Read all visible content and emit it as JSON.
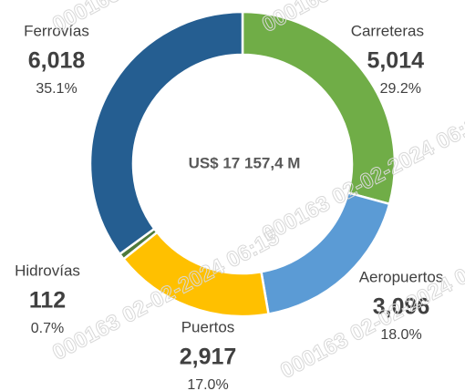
{
  "chart_data": {
    "type": "donut",
    "center_label": "US$ 17 157,4 M",
    "categories": [
      "Carreteras",
      "Aeropuertos",
      "Puertos",
      "Hidrovías",
      "Ferrovías"
    ],
    "values": [
      5014,
      3096,
      2917,
      112,
      6018
    ],
    "value_labels": [
      "5,014",
      "3,096",
      "2,917",
      "112",
      "6,018"
    ],
    "percents": [
      29.2,
      18.0,
      17.0,
      0.7,
      35.1
    ],
    "percent_labels": [
      "29.2%",
      "18.0%",
      "17.0%",
      "0.7%",
      "35.1%"
    ],
    "colors": [
      "#70ad47",
      "#5b9bd5",
      "#ffc000",
      "#4f7a3a",
      "#255e91"
    ],
    "watermark": "000163 02-02-2024 06:15"
  }
}
